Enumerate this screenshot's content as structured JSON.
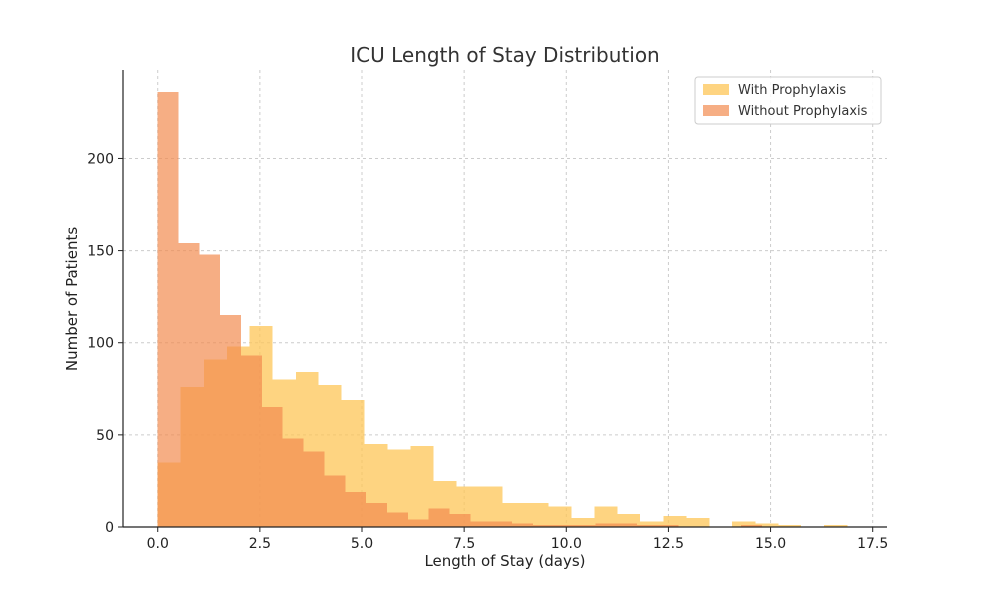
{
  "chart_data": {
    "type": "bar",
    "title": "ICU Length of Stay Distribution",
    "xlabel": "Length of Stay (days)",
    "ylabel": "Number of Patients",
    "xlim": [
      -0.85,
      17.85
    ],
    "ylim": [
      0,
      248
    ],
    "x_ticks": [
      0.0,
      2.5,
      5.0,
      7.5,
      10.0,
      12.5,
      15.0,
      17.5
    ],
    "x_tick_labels": [
      "0.0",
      "2.5",
      "5.0",
      "7.5",
      "10.0",
      "12.5",
      "15.0",
      "17.5"
    ],
    "y_ticks": [
      0,
      50,
      100,
      150,
      200
    ],
    "y_tick_labels": [
      "0",
      "50",
      "100",
      "150",
      "200"
    ],
    "grid": true,
    "legend_position": "top-right",
    "series": [
      {
        "name": "With Prophylaxis",
        "color": "#fdc657",
        "opacity": 0.75,
        "bin_edges": [
          0.0,
          0.56,
          1.13,
          1.69,
          2.25,
          2.81,
          3.38,
          3.94,
          4.5,
          5.06,
          5.63,
          6.19,
          6.75,
          7.31,
          7.88,
          8.44,
          9.0,
          9.56,
          10.13,
          10.69,
          11.25,
          11.81,
          12.38,
          12.94,
          13.5,
          14.06,
          14.63,
          15.19,
          15.75,
          16.31,
          16.88
        ],
        "counts": [
          35,
          76,
          91,
          98,
          109,
          80,
          84,
          77,
          69,
          45,
          42,
          44,
          25,
          22,
          22,
          13,
          13,
          11,
          5,
          11,
          7,
          3,
          6,
          5,
          0,
          3,
          2,
          1,
          0,
          1
        ]
      },
      {
        "name": "Without Prophylaxis",
        "color": "#f28c50",
        "opacity": 0.7,
        "bin_edges": [
          0.0,
          0.51,
          1.02,
          1.53,
          2.04,
          2.55,
          3.06,
          3.57,
          4.08,
          4.59,
          5.1,
          5.61,
          6.12,
          6.63,
          7.14,
          7.65,
          8.16,
          8.67,
          9.18,
          9.69,
          10.2,
          10.71,
          11.22,
          11.73,
          12.24,
          12.75,
          13.26,
          13.77,
          14.28,
          14.79,
          15.3
        ],
        "counts": [
          236,
          154,
          148,
          115,
          93,
          65,
          48,
          41,
          28,
          19,
          13,
          8,
          4,
          10,
          7,
          3,
          3,
          2,
          1,
          1,
          1,
          2,
          2,
          1,
          1,
          0,
          0,
          0,
          1,
          0
        ]
      }
    ]
  }
}
